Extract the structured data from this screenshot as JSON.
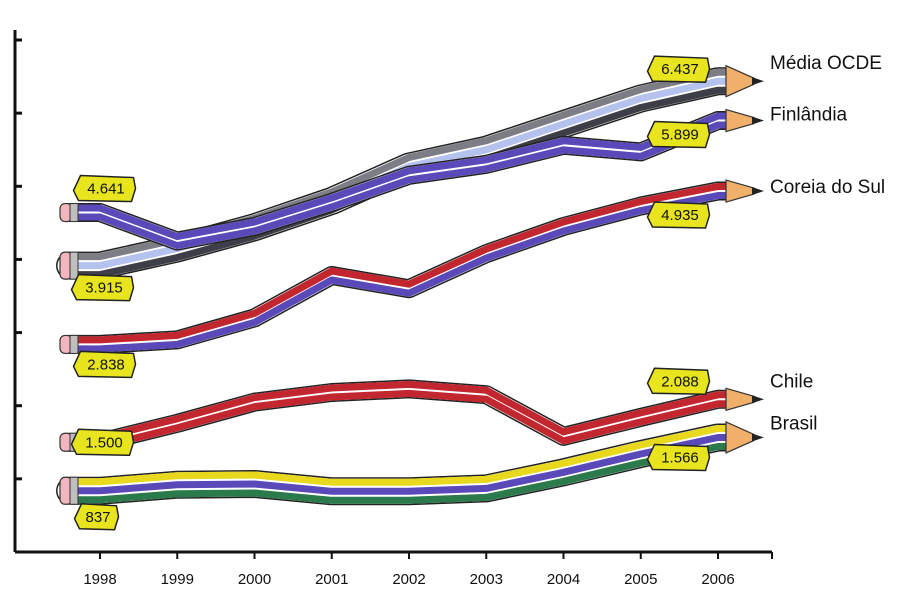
{
  "chart_data": {
    "type": "line",
    "title": "",
    "xlabel": "",
    "ylabel": "",
    "x": [
      "1998",
      "1999",
      "2000",
      "2001",
      "2002",
      "2003",
      "2004",
      "2005",
      "2006"
    ],
    "ylim": [
      0,
      7000
    ],
    "grid": false,
    "series": [
      {
        "name": "Média OCDE",
        "colors": [
          "#7d7d86",
          "#b6c2ee",
          "#3e3e48"
        ],
        "values": [
          3915,
          4150,
          4440,
          4800,
          5270,
          5500,
          5850,
          6200,
          6437
        ],
        "start_label": "3.915",
        "end_label": "6.437"
      },
      {
        "name": "Finlândia",
        "colors": [
          "#5a49b8",
          "#5a49b8"
        ],
        "values": [
          4641,
          4250,
          4450,
          4780,
          5150,
          5300,
          5560,
          5470,
          5899
        ],
        "start_label": "4.641",
        "end_label": "5.899"
      },
      {
        "name": "Coreia do Sul",
        "colors": [
          "#c2262e",
          "#5a49b8"
        ],
        "values": [
          2838,
          2900,
          3200,
          3780,
          3600,
          4080,
          4450,
          4730,
          4935
        ],
        "start_label": "2.838",
        "end_label": "4.935"
      },
      {
        "name": "Chile",
        "colors": [
          "#c2262e",
          "#c2262e"
        ],
        "values": [
          1500,
          1760,
          2050,
          2180,
          2230,
          2150,
          1580,
          1840,
          2088
        ],
        "start_label": "1.500",
        "end_label": "2.088"
      },
      {
        "name": "Brasil",
        "colors": [
          "#e8d81e",
          "#5a49b8",
          "#2b7a4b"
        ],
        "values": [
          837,
          920,
          930,
          830,
          830,
          870,
          1090,
          1340,
          1566
        ],
        "start_label": "837",
        "end_label": "1.566"
      }
    ]
  }
}
